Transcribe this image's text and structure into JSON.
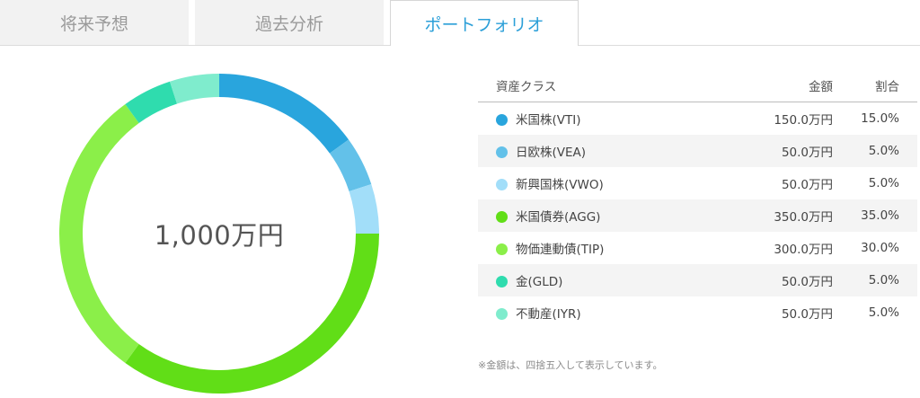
{
  "tabs": [
    {
      "label": "将来予想",
      "active": false
    },
    {
      "label": "過去分析",
      "active": false
    },
    {
      "label": "ポートフォリオ",
      "active": true
    }
  ],
  "total_label": "1,000万円",
  "table": {
    "headers": {
      "name": "資産クラス",
      "amount": "金額",
      "ratio": "割合"
    },
    "rows": [
      {
        "name": "米国株(VTI)",
        "amount": "150.0万円",
        "ratio": "15.0%",
        "color": "#29a5dd"
      },
      {
        "name": "日欧株(VEA)",
        "amount": "50.0万円",
        "ratio": "5.0%",
        "color": "#63c1e9"
      },
      {
        "name": "新興国株(VWO)",
        "amount": "50.0万円",
        "ratio": "5.0%",
        "color": "#a2def9"
      },
      {
        "name": "米国債券(AGG)",
        "amount": "350.0万円",
        "ratio": "35.0%",
        "color": "#61de17"
      },
      {
        "name": "物価連動債(TIP)",
        "amount": "300.0万円",
        "ratio": "30.0%",
        "color": "#8bef49"
      },
      {
        "name": "金(GLD)",
        "amount": "50.0万円",
        "ratio": "5.0%",
        "color": "#2fdcae"
      },
      {
        "name": "不動産(IYR)",
        "amount": "50.0万円",
        "ratio": "5.0%",
        "color": "#7feccd"
      }
    ]
  },
  "note": "※金額は、四捨五入して表示しています。",
  "chart_data": {
    "type": "pie",
    "categories": [
      "米国株(VTI)",
      "日欧株(VEA)",
      "新興国株(VWO)",
      "米国債券(AGG)",
      "物価連動債(TIP)",
      "金(GLD)",
      "不動産(IYR)"
    ],
    "values": [
      15,
      5,
      5,
      35,
      30,
      5,
      5
    ],
    "colors": [
      "#29a5dd",
      "#63c1e9",
      "#a2def9",
      "#61de17",
      "#8bef49",
      "#2fdcae",
      "#7feccd"
    ]
  }
}
